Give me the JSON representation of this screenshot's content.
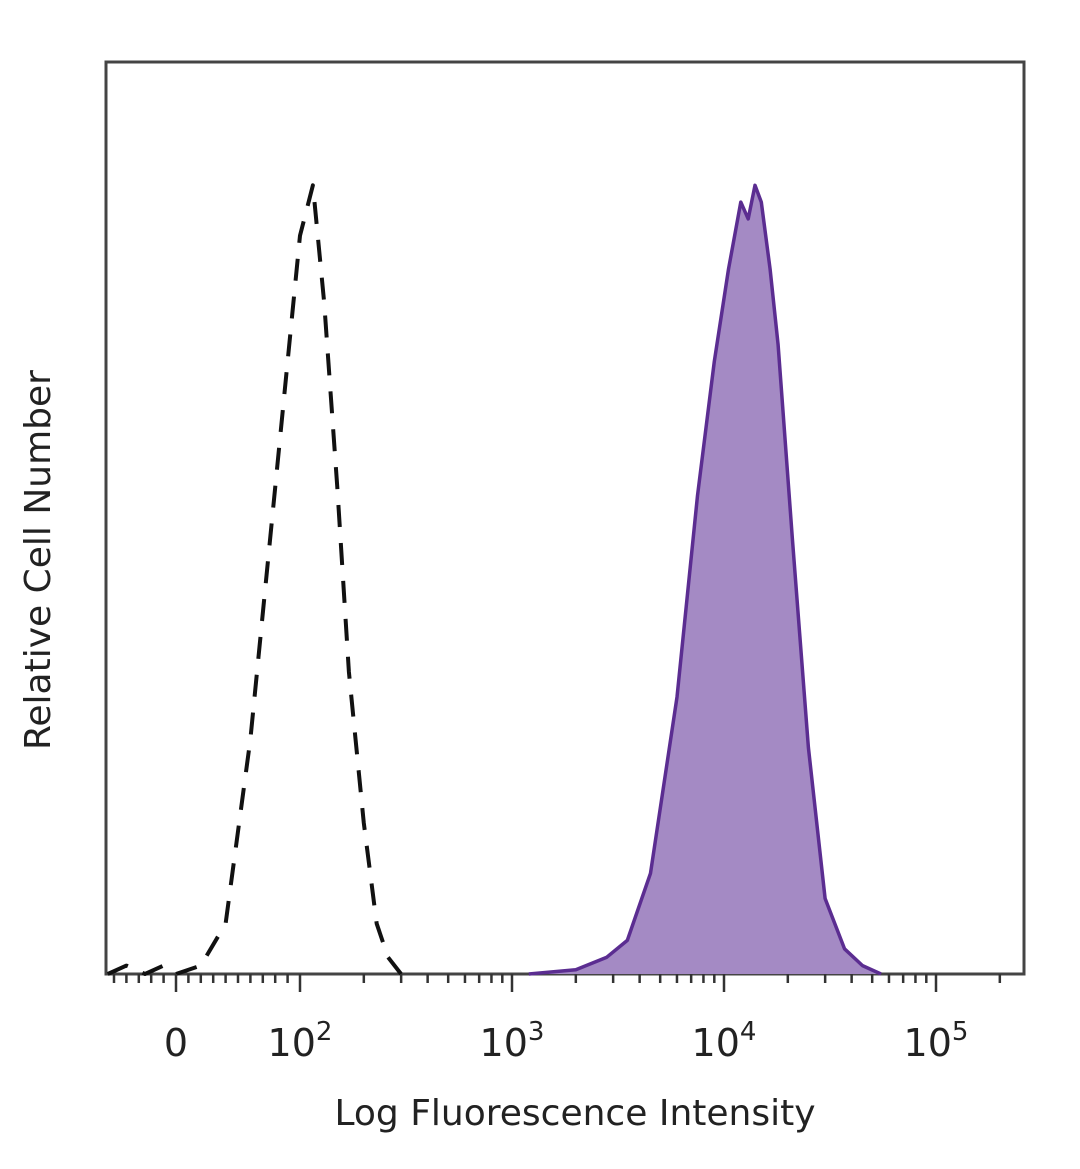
{
  "chart_data": {
    "type": "area",
    "xlabel": "Log Fluorescence Intensity",
    "ylabel": "Relative Cell Number",
    "x_scale": "biexponential",
    "xlim": [
      -60,
      200000
    ],
    "ylim": [
      0,
      1.0
    ],
    "x_ticks": [
      {
        "value": 0,
        "base": "0",
        "exp": ""
      },
      {
        "value": 100,
        "base": "10",
        "exp": "2"
      },
      {
        "value": 1000,
        "base": "10",
        "exp": "3"
      },
      {
        "value": 10000,
        "base": "10",
        "exp": "4"
      },
      {
        "value": 100000,
        "base": "10",
        "exp": "5"
      }
    ],
    "grid": false,
    "legend": "none",
    "series": [
      {
        "style": "dashed",
        "color": "#111111",
        "fill": "none",
        "x": [
          -55,
          -40,
          -25,
          -10,
          0,
          20,
          40,
          60,
          80,
          100,
          115,
          130,
          150,
          170,
          200,
          230,
          260,
          300
        ],
        "y": [
          0.0,
          0.01,
          0.0,
          0.01,
          0.0,
          0.01,
          0.06,
          0.28,
          0.58,
          0.88,
          0.94,
          0.8,
          0.58,
          0.36,
          0.18,
          0.06,
          0.02,
          0.0
        ]
      },
      {
        "style": "solid",
        "color": "#5b2d91",
        "fill": "#a48ac4",
        "x": [
          1200,
          2000,
          2800,
          3500,
          4500,
          6000,
          7500,
          9000,
          10500,
          12000,
          13000,
          14000,
          15000,
          16500,
          18000,
          21000,
          25000,
          30000,
          37000,
          45000,
          55000
        ],
        "y": [
          0.0,
          0.005,
          0.02,
          0.04,
          0.12,
          0.33,
          0.57,
          0.73,
          0.84,
          0.92,
          0.9,
          0.94,
          0.92,
          0.84,
          0.75,
          0.52,
          0.27,
          0.09,
          0.03,
          0.01,
          0.0
        ]
      }
    ]
  }
}
